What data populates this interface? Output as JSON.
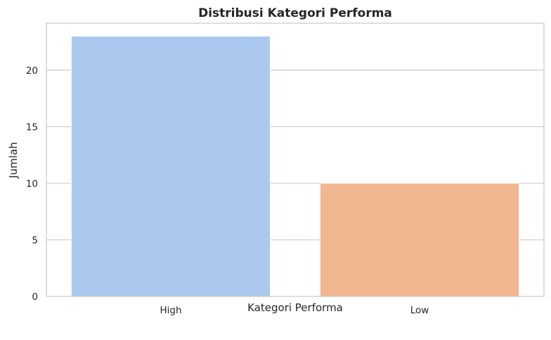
{
  "chart_data": {
    "type": "bar",
    "title": "Distribusi Kategori Performa",
    "xlabel": "Kategori Performa",
    "ylabel": "Jumlah",
    "categories": [
      "High",
      "Low"
    ],
    "values": [
      23,
      10
    ],
    "colors": [
      "#abc9ee",
      "#f1b791"
    ],
    "ylim": [
      0,
      24.15
    ],
    "yticks": [
      0,
      5,
      10,
      15,
      20
    ],
    "grid": "y"
  }
}
